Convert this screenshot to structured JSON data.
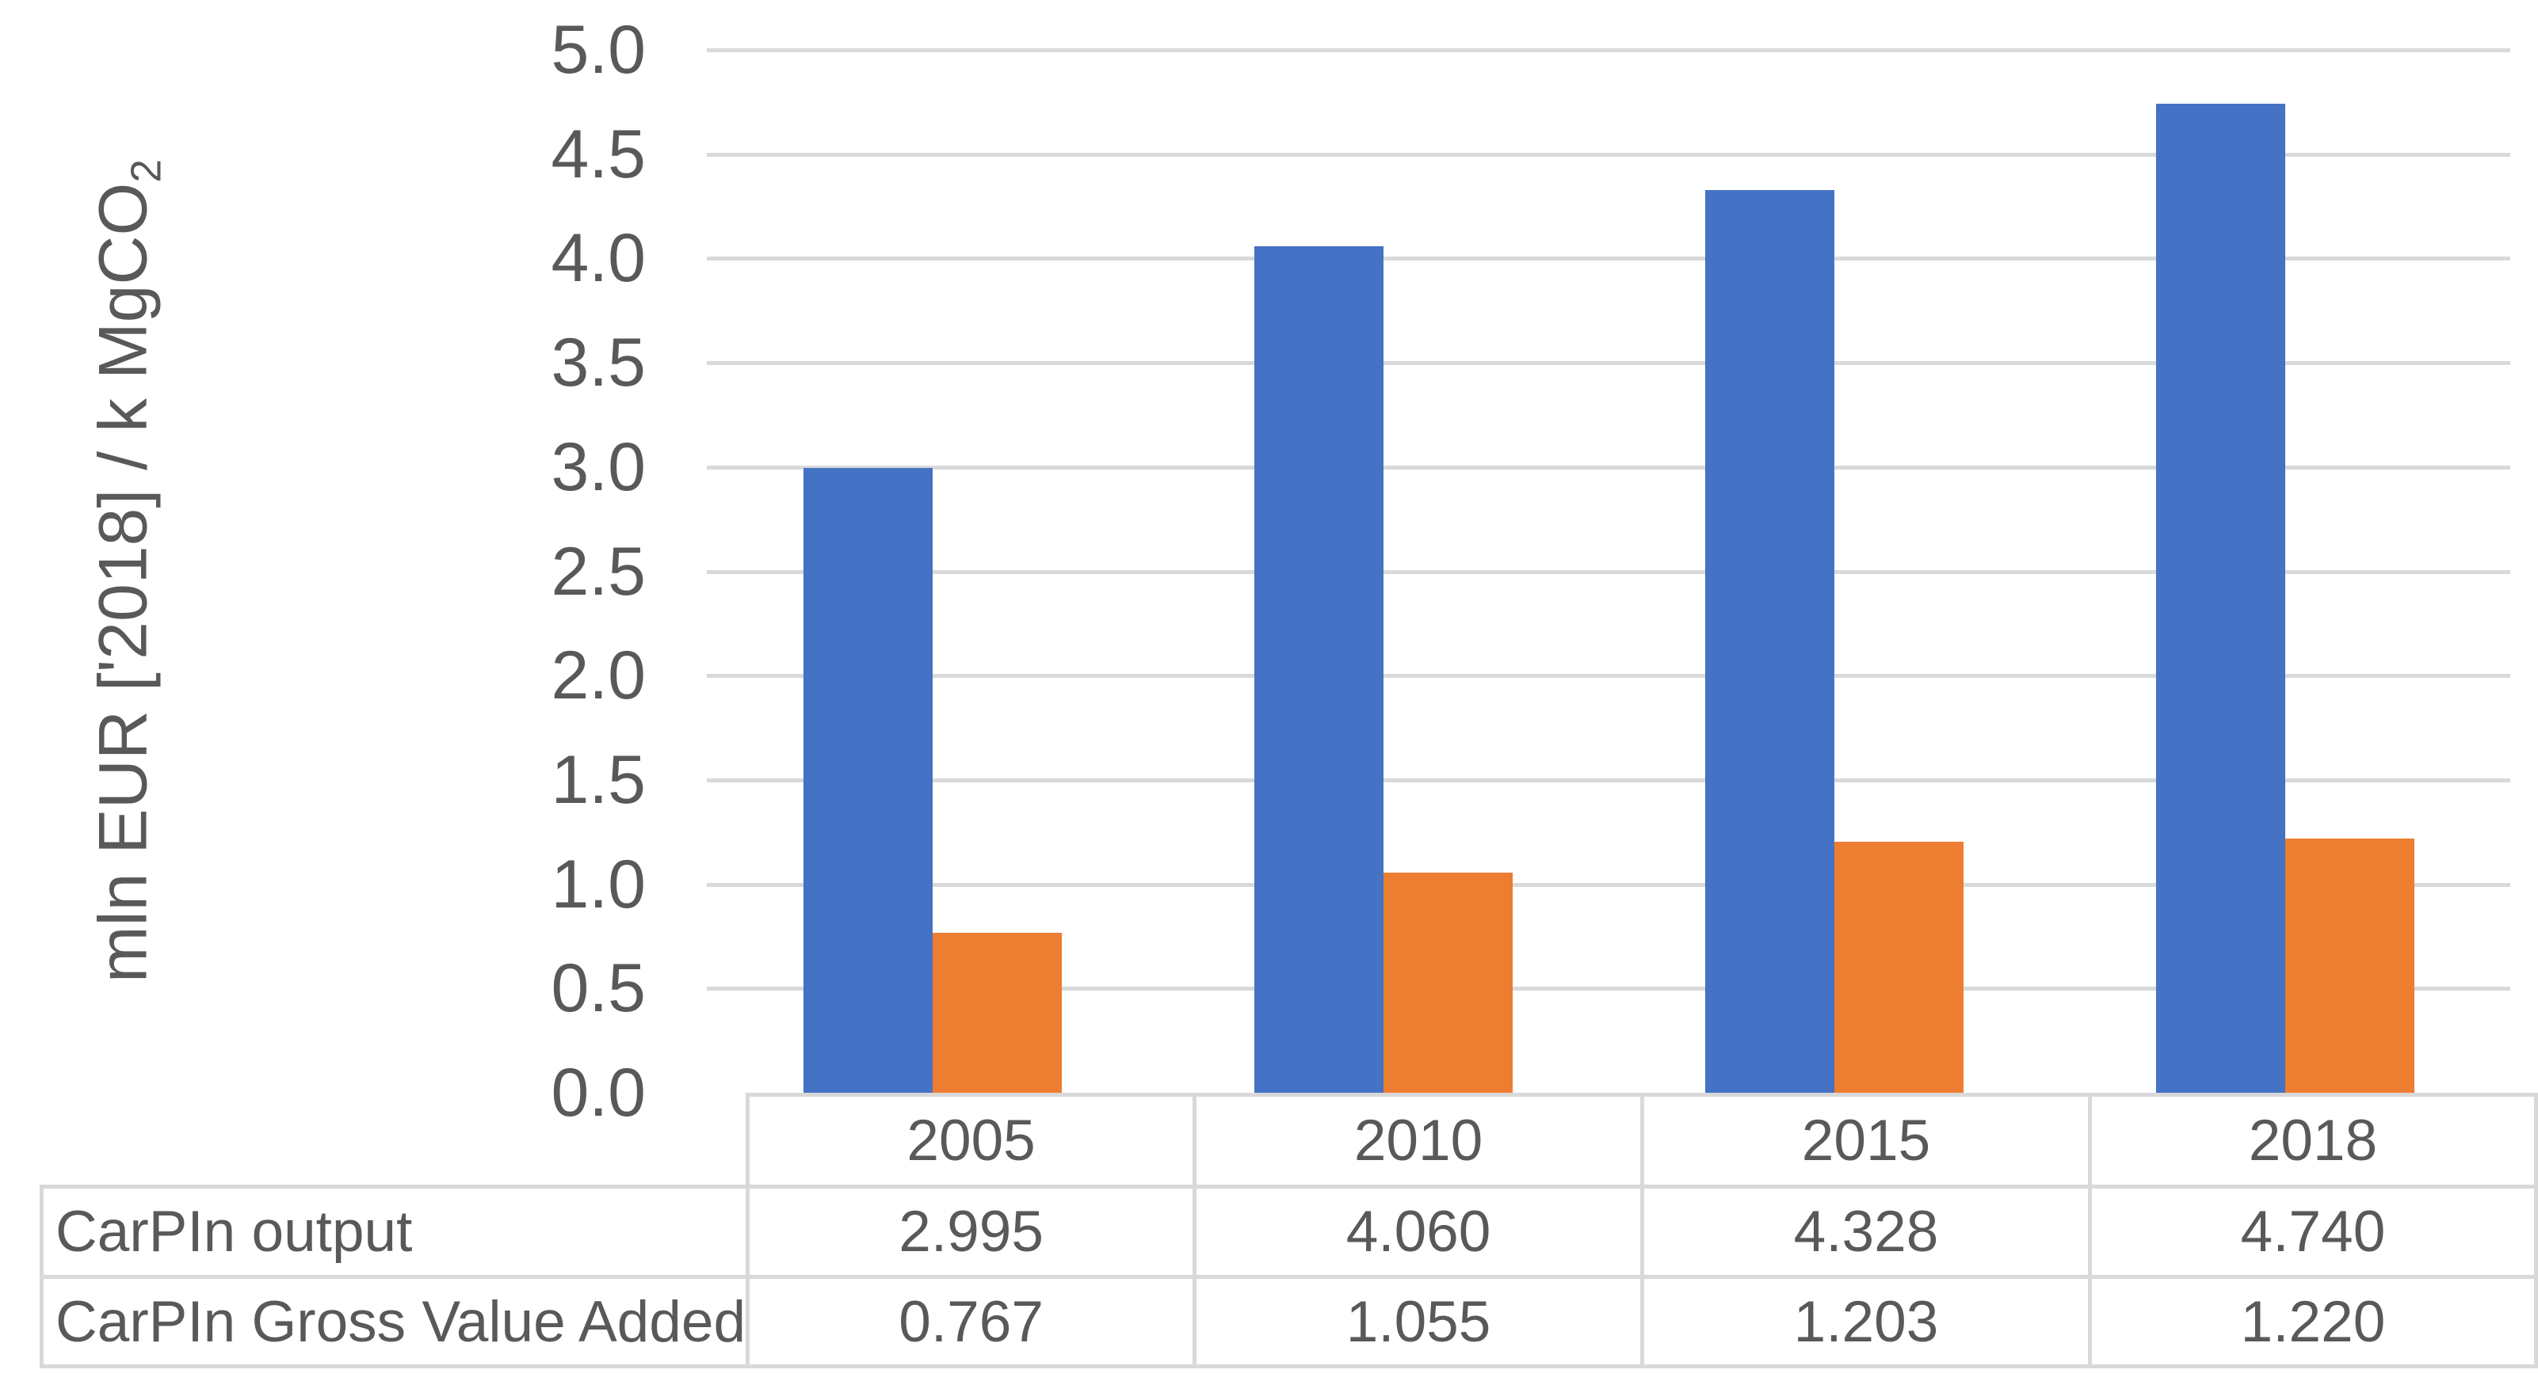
{
  "chart_data": {
    "type": "bar",
    "title": "",
    "categories": [
      "2005",
      "2010",
      "2015",
      "2018"
    ],
    "series": [
      {
        "name": "CarPIn output",
        "color": "#4472C4",
        "values": [
          2.995,
          4.06,
          4.328,
          4.74
        ]
      },
      {
        "name": "CarPIn Gross Value Added",
        "color": "#ED7D31",
        "values": [
          0.767,
          1.055,
          1.203,
          1.22
        ]
      }
    ],
    "value_decimals": 3,
    "xlabel": "",
    "ylabel": "mln EUR ['2018] / k MgCO₂",
    "ylabel_base": "mln EUR ['2018] / k MgCO",
    "ylabel_subscript": "2",
    "ylim": [
      0,
      5
    ],
    "ytick_step": 0.5,
    "yticks": [
      "0.0",
      "0.5",
      "1.0",
      "1.5",
      "2.0",
      "2.5",
      "3.0",
      "3.5",
      "4.0",
      "4.5",
      "5.0"
    ],
    "grid": true,
    "legend_position": "data-table-row-labels",
    "colors": {
      "gridline": "#D9D9D9",
      "table_border": "#D9D9D9",
      "axis_text": "#595959",
      "table_text": "#595959",
      "background": "#FFFFFF"
    }
  }
}
